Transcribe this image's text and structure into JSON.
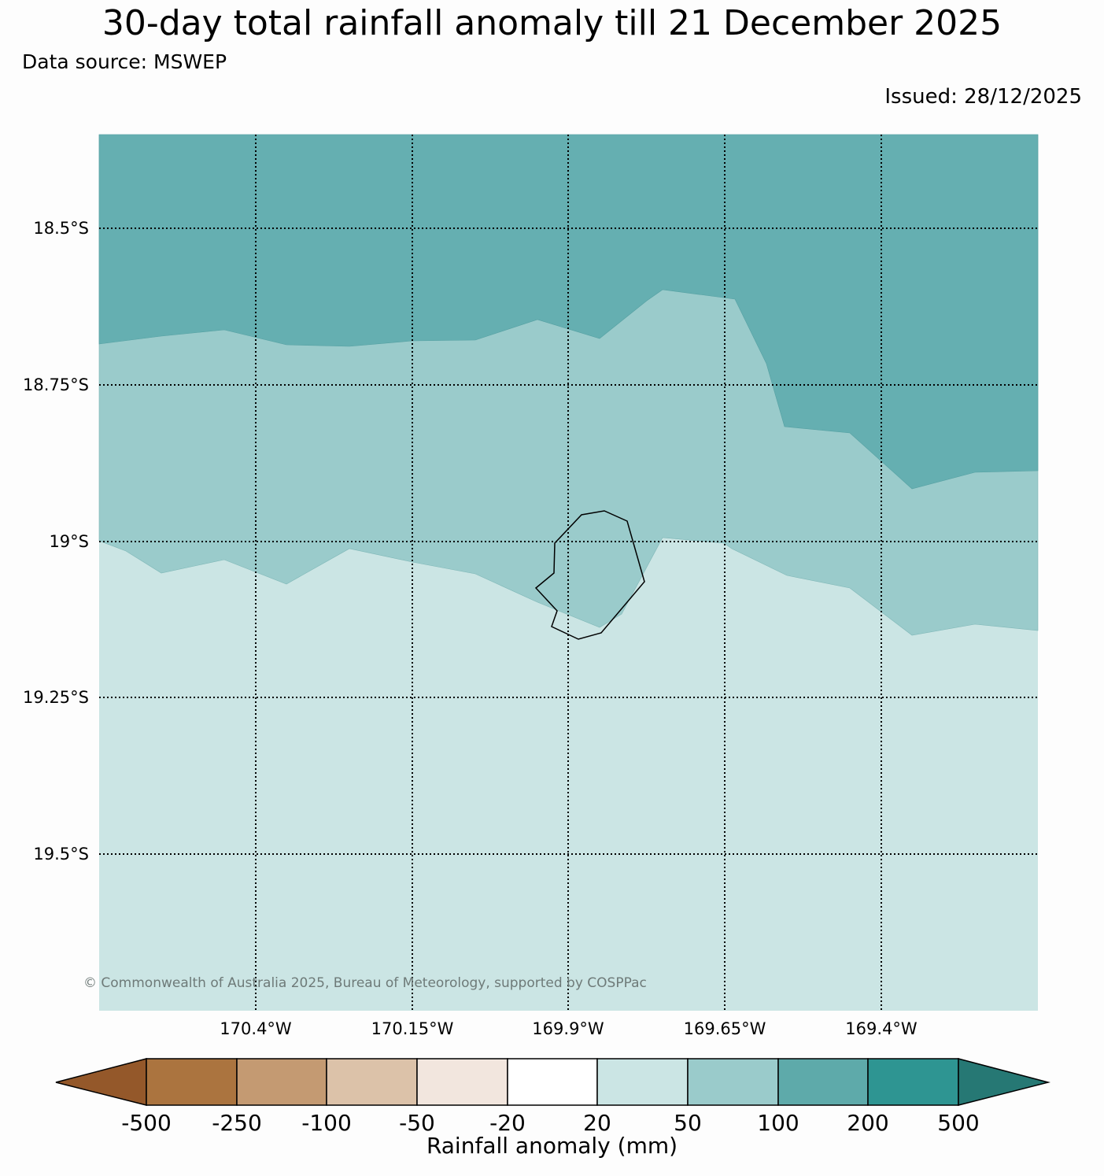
{
  "title": "30-day total rainfall anomaly till 21 December 2025",
  "data_source": "Data source: MSWEP",
  "issued": "Issued: 28/12/2025",
  "copyright": "© Commonwealth of Australia 2025, Bureau of Meteorology, supported by COSPPac",
  "map": {
    "lat_labels": [
      "18.5°S",
      "18.75°S",
      "19°S",
      "19.25°S",
      "19.5°S"
    ],
    "lon_labels": [
      "170.4°W",
      "170.15°W",
      "169.9°W",
      "169.65°W",
      "169.4°W"
    ],
    "feature": "Niue island outline",
    "zones": [
      {
        "range": "100 to 200 mm",
        "color": "#65afb1"
      },
      {
        "range": "50 to 100 mm",
        "color": "#9acbcb"
      },
      {
        "range": "20 to 50 mm",
        "color": "#cbe5e4"
      }
    ]
  },
  "colorbar": {
    "label": "Rainfall anomaly (mm)",
    "ticks": [
      "-500",
      "-250",
      "-100",
      "-50",
      "-20",
      "20",
      "50",
      "100",
      "200",
      "500"
    ],
    "colors": [
      "#94582a",
      "#ab743f",
      "#c49a72",
      "#dcc2a9",
      "#f2e6de",
      "#ffffff",
      "#cbe5e4",
      "#9acbcb",
      "#5eaaaa",
      "#2e9592",
      "#267874"
    ]
  }
}
